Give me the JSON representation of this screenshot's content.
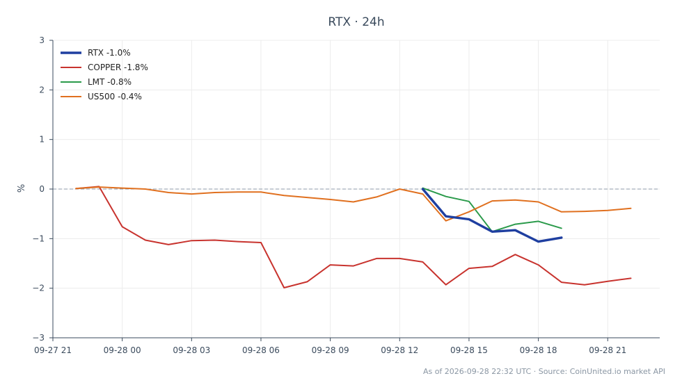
{
  "chart_data": {
    "type": "line",
    "title": "RTX · 24h",
    "xlabel": "",
    "ylabel": "%",
    "ylim": [
      -3,
      3
    ],
    "yticks": [
      -3,
      -2,
      -1,
      0,
      1,
      2,
      3
    ],
    "ytick_labels": [
      "−3",
      "−2",
      "−1",
      "0",
      "1",
      "2",
      "3"
    ],
    "xlim": [
      "2026-09-27T21:00",
      "2026-09-28T23:15"
    ],
    "xticks": [
      "2026-09-27T21:00",
      "2026-09-28T00:00",
      "2026-09-28T03:00",
      "2026-09-28T06:00",
      "2026-09-28T09:00",
      "2026-09-28T12:00",
      "2026-09-28T15:00",
      "2026-09-28T18:00",
      "2026-09-28T21:00"
    ],
    "xtick_labels": [
      "09-27 21",
      "09-28 00",
      "09-28 03",
      "09-28 06",
      "09-28 09",
      "09-28 12",
      "09-28 15",
      "09-28 18",
      "09-28 21"
    ],
    "reference_line": 0,
    "grid": true,
    "legend_position": "top-left",
    "series": [
      {
        "name": "RTX -1.0%",
        "color": "#1f3fa0",
        "x": [
          "2026-09-28T13:00",
          "2026-09-28T14:00",
          "2026-09-28T15:00",
          "2026-09-28T16:00",
          "2026-09-28T17:00",
          "2026-09-28T18:00",
          "2026-09-28T19:00"
        ],
        "y": [
          0.0,
          -0.55,
          -0.61,
          -0.86,
          -0.83,
          -1.06,
          -0.98
        ]
      },
      {
        "name": "COPPER -1.8%",
        "color": "#c8332e",
        "x": [
          "2026-09-27T22:00",
          "2026-09-27T23:00",
          "2026-09-28T00:00",
          "2026-09-28T01:00",
          "2026-09-28T02:00",
          "2026-09-28T03:00",
          "2026-09-28T04:00",
          "2026-09-28T05:00",
          "2026-09-28T06:00",
          "2026-09-28T07:00",
          "2026-09-28T08:00",
          "2026-09-28T09:00",
          "2026-09-28T10:00",
          "2026-09-28T11:00",
          "2026-09-28T12:00",
          "2026-09-28T13:00",
          "2026-09-28T14:00",
          "2026-09-28T15:00",
          "2026-09-28T16:00",
          "2026-09-28T17:00",
          "2026-09-28T18:00",
          "2026-09-28T19:00",
          "2026-09-28T20:00",
          "2026-09-28T21:00",
          "2026-09-28T22:00"
        ],
        "y": [
          0.01,
          0.05,
          -0.76,
          -1.03,
          -1.12,
          -1.04,
          -1.03,
          -1.06,
          -1.08,
          -1.99,
          -1.87,
          -1.53,
          -1.55,
          -1.4,
          -1.4,
          -1.47,
          -1.93,
          -1.6,
          -1.56,
          -1.32,
          -1.53,
          -1.88,
          -1.93,
          -1.86,
          -1.8
        ]
      },
      {
        "name": "LMT -0.8%",
        "color": "#2a9a4a",
        "x": [
          "2026-09-28T13:00",
          "2026-09-28T14:00",
          "2026-09-28T15:00",
          "2026-09-28T16:00",
          "2026-09-28T17:00",
          "2026-09-28T18:00",
          "2026-09-28T19:00"
        ],
        "y": [
          0.02,
          -0.15,
          -0.25,
          -0.86,
          -0.71,
          -0.65,
          -0.79
        ]
      },
      {
        "name": "US500 -0.4%",
        "color": "#e0701f",
        "x": [
          "2026-09-27T22:00",
          "2026-09-27T23:00",
          "2026-09-28T00:00",
          "2026-09-28T01:00",
          "2026-09-28T02:00",
          "2026-09-28T03:00",
          "2026-09-28T04:00",
          "2026-09-28T05:00",
          "2026-09-28T06:00",
          "2026-09-28T07:00",
          "2026-09-28T08:00",
          "2026-09-28T09:00",
          "2026-09-28T10:00",
          "2026-09-28T11:00",
          "2026-09-28T12:00",
          "2026-09-28T13:00",
          "2026-09-28T14:00",
          "2026-09-28T15:00",
          "2026-09-28T16:00",
          "2026-09-28T17:00",
          "2026-09-28T18:00",
          "2026-09-28T19:00",
          "2026-09-28T20:00",
          "2026-09-28T21:00",
          "2026-09-28T22:00"
        ],
        "y": [
          0.01,
          0.04,
          0.02,
          0.0,
          -0.07,
          -0.1,
          -0.07,
          -0.06,
          -0.06,
          -0.13,
          -0.17,
          -0.21,
          -0.26,
          -0.16,
          0.0,
          -0.1,
          -0.64,
          -0.46,
          -0.24,
          -0.22,
          -0.26,
          -0.46,
          -0.45,
          -0.43,
          -0.39
        ]
      }
    ]
  },
  "footer": {
    "text": "As of 2026-09-28 22:32 UTC · Source: CoinUnited.io market API"
  }
}
